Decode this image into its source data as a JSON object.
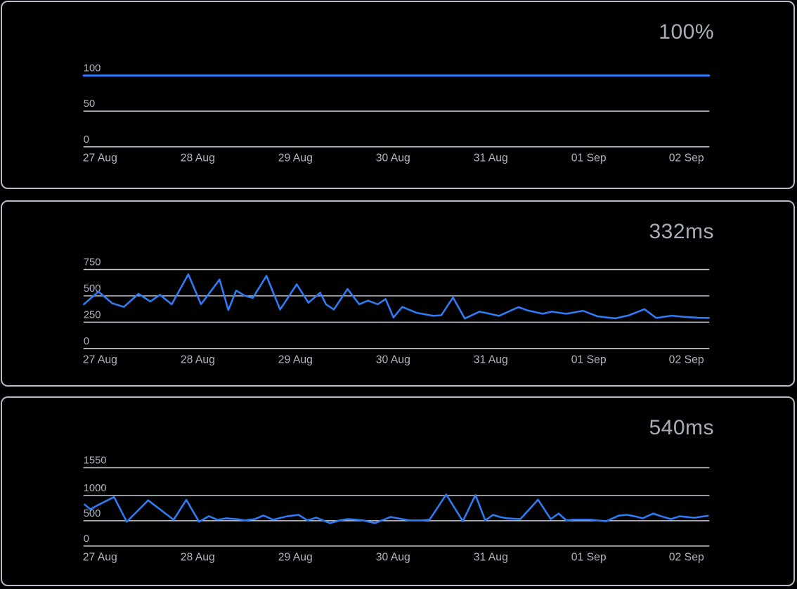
{
  "theme": {
    "background_color": "#000000",
    "panel_border_color": "#b7bdc8",
    "grid_color": "#c9cdd5",
    "tick_text_color": "#aeb4be",
    "title_text_color": "#a7adb8",
    "accent_color": "#2e7cf6"
  },
  "chart_data": [
    {
      "type": "line",
      "title": "100%",
      "unit": "percent-uptime",
      "x_tick_labels": [
        "27 Aug",
        "28 Aug",
        "29 Aug",
        "30 Aug",
        "31 Aug",
        "01 Sep",
        "02 Sep"
      ],
      "y_ticks": [
        100,
        50,
        0
      ],
      "ylim": [
        0,
        100
      ],
      "x_range_days": [
        0,
        6.41
      ],
      "grid": "horizontal-only",
      "legend": "none",
      "series": [
        {
          "name": "uptime-percent",
          "points": [
            [
              0.01,
              100
            ],
            [
              6.41,
              100
            ]
          ]
        }
      ]
    },
    {
      "type": "line",
      "title": "332ms",
      "unit": "milliseconds-response-time",
      "x_tick_labels": [
        "27 Aug",
        "28 Aug",
        "29 Aug",
        "30 Aug",
        "31 Aug",
        "01 Sep",
        "02 Sep"
      ],
      "y_ticks": [
        750,
        500,
        250,
        0
      ],
      "ylim": [
        0,
        750
      ],
      "x_range_days": [
        0,
        6.41
      ],
      "grid": "horizontal-only",
      "legend": "none",
      "series": [
        {
          "name": "response-time-ms",
          "points": [
            [
              0.01,
              420
            ],
            [
              0.16,
              540
            ],
            [
              0.3,
              430
            ],
            [
              0.42,
              395
            ],
            [
              0.57,
              520
            ],
            [
              0.69,
              447
            ],
            [
              0.79,
              510
            ],
            [
              0.91,
              420
            ],
            [
              1.08,
              705
            ],
            [
              1.21,
              420
            ],
            [
              1.4,
              655
            ],
            [
              1.49,
              365
            ],
            [
              1.57,
              550
            ],
            [
              1.66,
              500
            ],
            [
              1.74,
              480
            ],
            [
              1.88,
              690
            ],
            [
              2.02,
              370
            ],
            [
              2.19,
              610
            ],
            [
              2.31,
              435
            ],
            [
              2.43,
              530
            ],
            [
              2.49,
              420
            ],
            [
              2.57,
              370
            ],
            [
              2.71,
              565
            ],
            [
              2.83,
              420
            ],
            [
              2.92,
              455
            ],
            [
              3.02,
              420
            ],
            [
              3.1,
              470
            ],
            [
              3.18,
              295
            ],
            [
              3.27,
              395
            ],
            [
              3.42,
              338
            ],
            [
              3.59,
              310
            ],
            [
              3.67,
              316
            ],
            [
              3.79,
              485
            ],
            [
              3.91,
              285
            ],
            [
              4.06,
              350
            ],
            [
              4.14,
              335
            ],
            [
              4.26,
              310
            ],
            [
              4.46,
              393
            ],
            [
              4.56,
              360
            ],
            [
              4.71,
              330
            ],
            [
              4.8,
              350
            ],
            [
              4.95,
              330
            ],
            [
              5.12,
              358
            ],
            [
              5.27,
              305
            ],
            [
              5.45,
              286
            ],
            [
              5.59,
              315
            ],
            [
              5.75,
              373
            ],
            [
              5.87,
              290
            ],
            [
              6.03,
              312
            ],
            [
              6.16,
              300
            ],
            [
              6.3,
              292
            ],
            [
              6.41,
              290
            ]
          ]
        }
      ]
    },
    {
      "type": "line",
      "title": "540ms",
      "unit": "milliseconds-response-time",
      "x_tick_labels": [
        "27 Aug",
        "28 Aug",
        "29 Aug",
        "30 Aug",
        "31 Aug",
        "01 Sep",
        "02 Sep"
      ],
      "y_ticks": [
        1550,
        1000,
        500,
        0
      ],
      "ylim": [
        0,
        1550
      ],
      "x_range_days": [
        0,
        6.4
      ],
      "grid": "horizontal-only",
      "legend": "none",
      "series": [
        {
          "name": "response-time-ms",
          "points": [
            [
              0.02,
              820
            ],
            [
              0.08,
              726
            ],
            [
              0.14,
              795
            ],
            [
              0.32,
              970
            ],
            [
              0.45,
              480
            ],
            [
              0.67,
              905
            ],
            [
              0.93,
              520
            ],
            [
              1.06,
              915
            ],
            [
              1.19,
              480
            ],
            [
              1.29,
              590
            ],
            [
              1.38,
              520
            ],
            [
              1.47,
              548
            ],
            [
              1.57,
              534
            ],
            [
              1.66,
              507
            ],
            [
              1.76,
              534
            ],
            [
              1.85,
              603
            ],
            [
              1.95,
              521
            ],
            [
              2.09,
              589
            ],
            [
              2.21,
              617
            ],
            [
              2.3,
              507
            ],
            [
              2.39,
              562
            ],
            [
              2.53,
              452
            ],
            [
              2.63,
              507
            ],
            [
              2.72,
              534
            ],
            [
              2.87,
              507
            ],
            [
              2.99,
              452
            ],
            [
              3.15,
              575
            ],
            [
              3.34,
              507
            ],
            [
              3.47,
              507
            ],
            [
              3.55,
              521
            ],
            [
              3.72,
              1020
            ],
            [
              3.89,
              493
            ],
            [
              4.02,
              1010
            ],
            [
              4.12,
              507
            ],
            [
              4.2,
              617
            ],
            [
              4.27,
              575
            ],
            [
              4.34,
              548
            ],
            [
              4.48,
              534
            ],
            [
              4.66,
              918
            ],
            [
              4.79,
              534
            ],
            [
              4.87,
              644
            ],
            [
              4.95,
              507
            ],
            [
              5.02,
              521
            ],
            [
              5.19,
              521
            ],
            [
              5.26,
              507
            ],
            [
              5.36,
              493
            ],
            [
              5.49,
              603
            ],
            [
              5.57,
              617
            ],
            [
              5.65,
              589
            ],
            [
              5.73,
              548
            ],
            [
              5.84,
              644
            ],
            [
              5.92,
              589
            ],
            [
              6.02,
              534
            ],
            [
              6.11,
              589
            ],
            [
              6.26,
              560
            ],
            [
              6.4,
              600
            ]
          ]
        }
      ]
    }
  ]
}
